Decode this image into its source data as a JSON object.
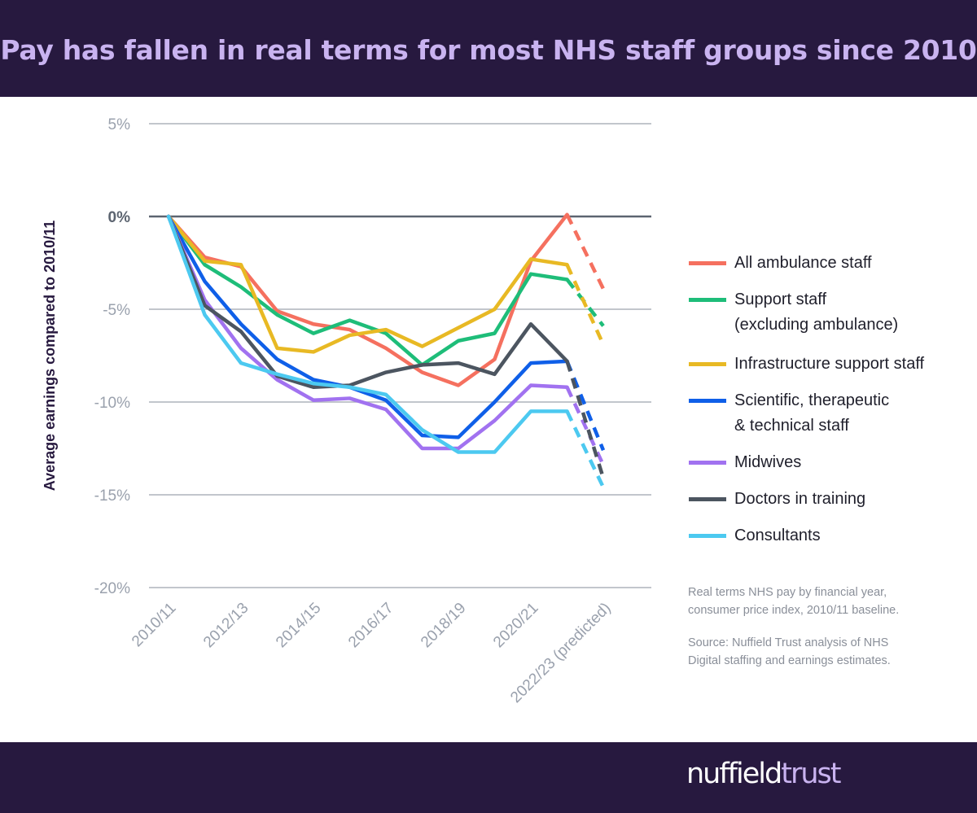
{
  "header": {
    "title": "Pay has fallen in real terms for most NHS staff groups since 2010"
  },
  "notes": {
    "method": "Real terms NHS pay by financial year,\nconsumer price index, 2010/11 baseline.",
    "source": "Source: Nuffield Trust analysis of NHS\nDigital staffing and earnings estimates."
  },
  "logo": {
    "part1": "nuffield",
    "part2": "trust"
  },
  "chart_data": {
    "type": "line",
    "ylabel": "Average earnings compared to 2010/11",
    "ylim": [
      -20,
      5
    ],
    "yticks": [
      5,
      0,
      -5,
      -10,
      -15,
      -20
    ],
    "ytick_labels": [
      "5%",
      "0%",
      "-5%",
      "-10%",
      "-15%",
      "-20%"
    ],
    "x": [
      "2010/11",
      "2011/12",
      "2012/13",
      "2013/14",
      "2014/15",
      "2015/16",
      "2016/17",
      "2017/18",
      "2018/19",
      "2019/20",
      "2020/21",
      "2021/22",
      "2022/23 (predicted)"
    ],
    "xtick_labels": [
      "2010/11",
      "",
      "2012/13",
      "",
      "2014/15",
      "",
      "2016/17",
      "",
      "2018/19",
      "",
      "2020/21",
      "",
      "2022/23 (predicted)"
    ],
    "predicted_from_index": 11,
    "grid": true,
    "legend_position": "right",
    "series": [
      {
        "name": "All ambulance staff",
        "color": "#f5705f",
        "values": [
          0,
          -2.2,
          -2.7,
          -5.1,
          -5.8,
          -6.1,
          -7.1,
          -8.4,
          -9.1,
          -7.7,
          -2.4,
          0.1,
          -3.9
        ]
      },
      {
        "name": "Support staff\n(excluding ambulance)",
        "color": "#1ebd79",
        "values": [
          0,
          -2.6,
          -3.8,
          -5.3,
          -6.3,
          -5.6,
          -6.3,
          -8.0,
          -6.7,
          -6.3,
          -3.1,
          -3.4,
          -5.9
        ]
      },
      {
        "name": "Infrastructure support staff",
        "color": "#e8b924",
        "values": [
          0,
          -2.4,
          -2.6,
          -7.1,
          -7.3,
          -6.4,
          -6.1,
          -7.0,
          -6.0,
          -5.0,
          -2.3,
          -2.6,
          -6.9
        ]
      },
      {
        "name": "Scientific, therapeutic\n& technical staff",
        "color": "#0f5fe8",
        "values": [
          0,
          -3.5,
          -5.8,
          -7.7,
          -8.8,
          -9.2,
          -9.9,
          -11.8,
          -11.9,
          -10.0,
          -7.9,
          -7.8,
          -12.6
        ]
      },
      {
        "name": "Midwives",
        "color": "#a172f0",
        "values": [
          0,
          -4.5,
          -7.1,
          -8.8,
          -9.9,
          -9.8,
          -10.4,
          -12.5,
          -12.5,
          -11.0,
          -9.1,
          -9.2,
          -13.4
        ]
      },
      {
        "name": "Doctors in training",
        "color": "#4c5560",
        "values": [
          0,
          -4.8,
          -6.2,
          -8.6,
          -9.2,
          -9.1,
          -8.4,
          -8.0,
          -7.9,
          -8.5,
          -5.8,
          -7.8,
          -14.1
        ]
      },
      {
        "name": "Consultants",
        "color": "#4cc9f0",
        "values": [
          0,
          -5.3,
          -7.9,
          -8.5,
          -9.0,
          -9.2,
          -9.6,
          -11.5,
          -12.7,
          -12.7,
          -10.5,
          -10.5,
          -14.6
        ]
      }
    ]
  }
}
